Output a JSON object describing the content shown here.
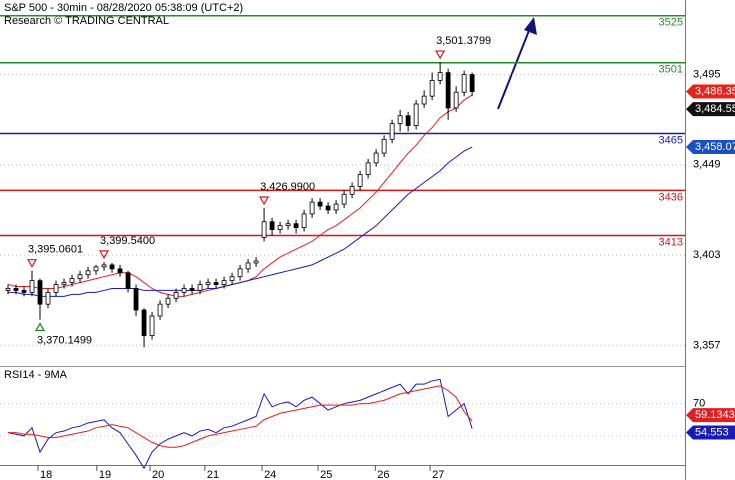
{
  "chart_data": [
    {
      "type": "candlestick",
      "title": "S&P 500 - 30min - 08/28/2020 05:38:09 (UTC+2)",
      "subtitle": "Research © TRADING CENTRAL",
      "color": "#000000",
      "xlim": [
        0,
        85.6
      ],
      "ylim": [
        3347,
        3533
      ],
      "yticks": [
        {
          "value": 3357,
          "label": "3,357"
        },
        {
          "value": 3403,
          "label": "3,403"
        },
        {
          "value": 3449,
          "label": "3,449"
        },
        {
          "value": 3495,
          "label": "3,495"
        }
      ],
      "grid": true,
      "open": [
        3385,
        3386,
        3385,
        3384,
        3390,
        3378,
        3384,
        3388,
        3389,
        3391,
        3393,
        3395,
        3397,
        3398,
        3396,
        3394,
        3386,
        3375,
        3362,
        3372,
        3378,
        3381,
        3384,
        3386,
        3385,
        3388,
        3389,
        3388,
        3390,
        3392,
        3396,
        3399,
        3412,
        3420,
        3416,
        3418,
        3419,
        3417,
        3424,
        3430,
        3428,
        3426,
        3429,
        3434,
        3438,
        3444,
        3450,
        3455,
        3462,
        3470,
        3474,
        3469,
        3480,
        3484,
        3492,
        3496,
        3478,
        3486,
        3495
      ],
      "high": [
        3388,
        3388,
        3387,
        3395.0601,
        3391,
        3386,
        3390,
        3391,
        3393,
        3395,
        3397,
        3398,
        3399.54,
        3399,
        3398,
        3395,
        3388,
        3376,
        3374,
        3380,
        3383,
        3386,
        3388,
        3388,
        3390,
        3391,
        3391,
        3392,
        3394,
        3398,
        3401,
        3402,
        3426.99,
        3422,
        3420,
        3421,
        3421,
        3426,
        3432,
        3432,
        3430,
        3431,
        3436,
        3440,
        3446,
        3452,
        3457,
        3464,
        3472,
        3477,
        3476,
        3482,
        3487,
        3496,
        3501.3799,
        3498,
        3489,
        3497,
        3496
      ],
      "low": [
        3383,
        3383,
        3382,
        3382,
        3370.1499,
        3376,
        3382,
        3386,
        3387,
        3389,
        3391,
        3393,
        3395,
        3394,
        3392,
        3384,
        3372,
        3356,
        3360,
        3370,
        3376,
        3379,
        3382,
        3383,
        3383,
        3386,
        3386,
        3386,
        3388,
        3390,
        3394,
        3397,
        3410,
        3413,
        3414,
        3416,
        3414,
        3415,
        3422,
        3426,
        3424,
        3424,
        3427,
        3432,
        3436,
        3442,
        3448,
        3453,
        3460,
        3466,
        3466,
        3467,
        3478,
        3482,
        3490,
        3472,
        3476,
        3484,
        3484
      ],
      "close": [
        3386,
        3385,
        3384,
        3390,
        3378,
        3384,
        3388,
        3389,
        3391,
        3393,
        3395,
        3397,
        3398,
        3396,
        3394,
        3386,
        3375,
        3362,
        3372,
        3378,
        3381,
        3384,
        3386,
        3385,
        3388,
        3389,
        3388,
        3390,
        3392,
        3396,
        3399,
        3400,
        3420,
        3416,
        3418,
        3419,
        3417,
        3424,
        3430,
        3428,
        3426,
        3429,
        3434,
        3438,
        3444,
        3450,
        3455,
        3462,
        3470,
        3474,
        3469,
        3480,
        3484,
        3492,
        3496,
        3478,
        3486,
        3495,
        3486.35
      ],
      "high_labels": [
        null,
        null,
        null,
        "3,395.0601",
        null,
        null,
        null,
        null,
        null,
        null,
        null,
        null,
        "3,399.5400",
        null,
        null,
        null,
        null,
        null,
        null,
        null,
        null,
        null,
        null,
        null,
        null,
        null,
        null,
        null,
        null,
        null,
        null,
        null,
        "3,426.9900",
        null,
        null,
        null,
        null,
        null,
        null,
        null,
        null,
        null,
        null,
        null,
        null,
        null,
        null,
        null,
        null,
        null,
        null,
        null,
        null,
        null,
        "3,501.3799",
        null,
        null,
        null,
        null
      ],
      "low_labels": [
        null,
        null,
        null,
        null,
        "3,370.1499",
        null,
        null,
        null,
        null,
        null,
        null,
        null,
        null,
        null,
        null,
        null,
        null,
        null,
        null,
        null,
        null,
        null,
        null,
        null,
        null,
        null,
        null,
        null,
        null,
        null,
        null,
        null,
        null,
        null,
        null,
        null,
        null,
        null,
        null,
        null,
        null,
        null,
        null,
        null,
        null,
        null,
        null,
        null,
        null,
        null,
        null,
        null,
        null,
        null,
        null,
        null,
        null,
        null,
        null
      ],
      "last_label": "3,486.35",
      "last_color": "#e8231c",
      "levels": [
        {
          "value": 3525,
          "color": "#2a8a2a"
        },
        {
          "value": 3501,
          "color": "#2a8a2a"
        },
        {
          "value": 3465,
          "color": "#1a1ab8"
        },
        {
          "value": 3436,
          "color": "#d01818"
        },
        {
          "value": 3413,
          "color": "#d01818"
        }
      ],
      "series": [
        {
          "color": "#e02020",
          "tag_color": "#111111",
          "last_label": "3,484.55",
          "values": [
            3388,
            3387,
            3387,
            3387,
            3386,
            3386,
            3386,
            3387,
            3388,
            3389,
            3390,
            3391,
            3392,
            3393,
            3394,
            3394,
            3392,
            3389,
            3386,
            3384,
            3383,
            3382,
            3382,
            3383,
            3384,
            3385,
            3386,
            3387,
            3388,
            3389,
            3390,
            3392,
            3396,
            3399,
            3402,
            3404,
            3406,
            3408,
            3410,
            3413,
            3416,
            3418,
            3421,
            3424,
            3427,
            3431,
            3435,
            3440,
            3445,
            3450,
            3455,
            3459,
            3464,
            3468,
            3473,
            3476,
            3478,
            3482,
            3484.55
          ]
        },
        {
          "color": "#1a1ab8",
          "tag_color": "#1a4fc4",
          "last_label": "3,458.07",
          "values": [
            3384,
            3384,
            3383,
            3383,
            3382,
            3382,
            3382,
            3382,
            3383,
            3383,
            3384,
            3384,
            3385,
            3386,
            3386,
            3386,
            3386,
            3385,
            3385,
            3385,
            3385,
            3385,
            3385,
            3385,
            3385,
            3386,
            3386,
            3387,
            3388,
            3389,
            3390,
            3391,
            3392,
            3393,
            3394,
            3395,
            3396,
            3397,
            3398,
            3400,
            3402,
            3404,
            3406,
            3409,
            3412,
            3415,
            3418,
            3422,
            3426,
            3430,
            3434,
            3437,
            3440,
            3443,
            3446,
            3450,
            3453,
            3456,
            3458.07
          ]
        }
      ]
    },
    {
      "type": "line",
      "title": "RSI14 - 9MA",
      "xlim": [
        0,
        85.6
      ],
      "xticks": [
        {
          "value": 4.75,
          "label": "18"
        },
        {
          "value": 12.1,
          "label": "19"
        },
        {
          "value": 18.75,
          "label": "20"
        },
        {
          "value": 25.6,
          "label": "21"
        },
        {
          "value": 32.75,
          "label": "24"
        },
        {
          "value": 39.75,
          "label": "25"
        },
        {
          "value": 46.9,
          "label": "26"
        },
        {
          "value": 53.75,
          "label": "27"
        }
      ],
      "ylim": [
        32,
        92
      ],
      "yticks": [
        50,
        70
      ],
      "grid": true,
      "series": [
        {
          "color": "#1a1ab8",
          "last_label": "54.553",
          "values": [
            52,
            51,
            50,
            55,
            40,
            48,
            52,
            53,
            55,
            56,
            58,
            59,
            60,
            55,
            52,
            45,
            38,
            30,
            40,
            45,
            48,
            50,
            52,
            50,
            53,
            54,
            52,
            55,
            56,
            58,
            60,
            62,
            76,
            68,
            70,
            71,
            68,
            72,
            74,
            70,
            66,
            68,
            70,
            71,
            72,
            74,
            76,
            78,
            80,
            82,
            76,
            82,
            82,
            84,
            85,
            62,
            66,
            70,
            54.553
          ]
        },
        {
          "color": "#e02020",
          "last_label": "59.1343",
          "values": [
            52,
            52,
            51,
            51,
            50,
            49,
            49,
            50,
            51,
            52,
            53,
            55,
            56,
            57,
            56,
            55,
            52,
            49,
            46,
            44,
            43,
            43,
            44,
            46,
            48,
            50,
            51,
            52,
            53,
            54,
            55,
            56,
            60,
            62,
            64,
            65,
            66,
            67,
            68,
            69,
            69,
            69,
            69,
            69,
            70,
            70,
            71,
            72,
            74,
            76,
            77,
            78,
            79,
            80,
            81,
            78,
            74,
            65,
            59.1343
          ]
        }
      ]
    }
  ]
}
